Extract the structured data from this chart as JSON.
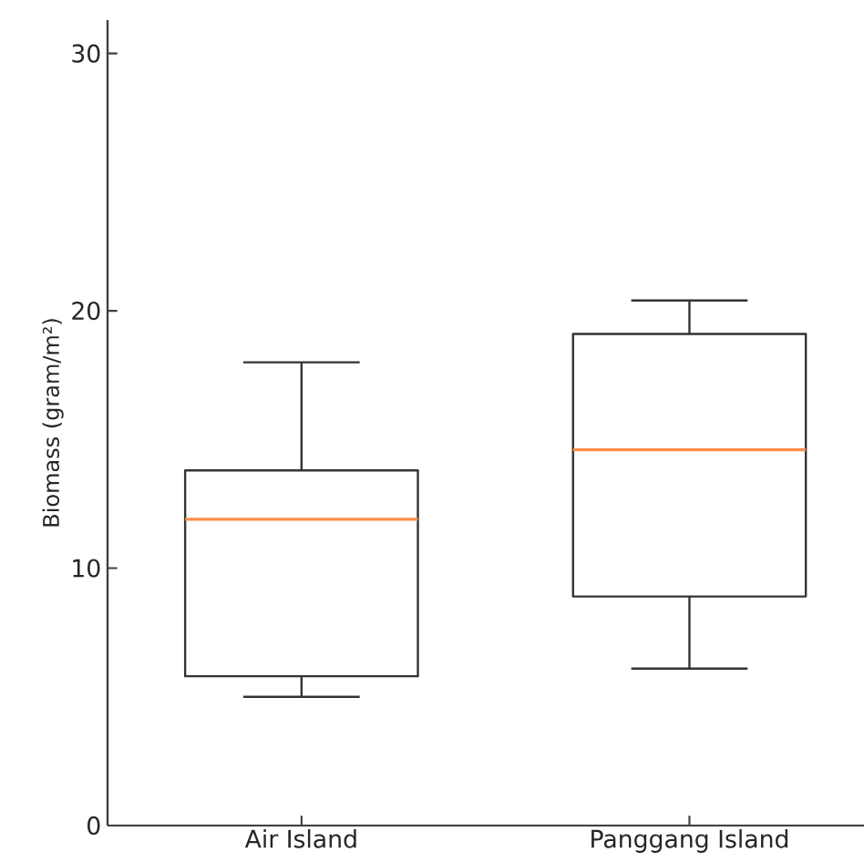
{
  "chart_data": {
    "type": "box",
    "ylabel": "Biomass (gram/m²)",
    "categories": [
      "Air Island",
      "Panggang Island"
    ],
    "ylim": [
      0,
      31.3
    ],
    "yticks": [
      0,
      10,
      20,
      30
    ],
    "boxes": [
      {
        "low": 5.0,
        "q1": 5.8,
        "median": 11.9,
        "q3": 13.8,
        "high": 18.0
      },
      {
        "low": 6.1,
        "q1": 8.9,
        "median": 14.6,
        "q3": 19.1,
        "high": 20.4
      }
    ]
  }
}
